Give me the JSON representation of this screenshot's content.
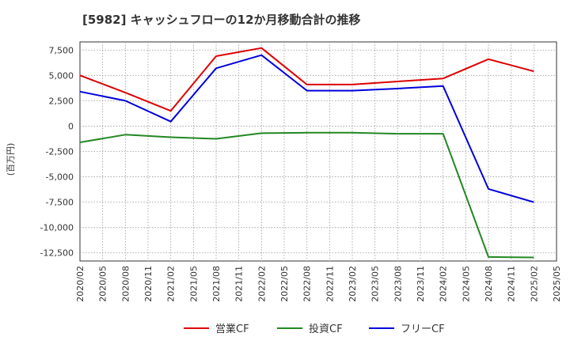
{
  "chart_data": {
    "type": "line",
    "title": "[5982]  キャッシュフローの12か月移動合計の推移",
    "ylabel": "(百万円)",
    "xlabel": "",
    "ylim": [
      -13300,
      8300
    ],
    "yticks": [
      7500,
      5000,
      2500,
      0,
      -2500,
      -5000,
      -7500,
      -10000,
      -12500
    ],
    "ytick_labels": [
      "7,500",
      "5,000",
      "2,500",
      "0",
      "-2,500",
      "-5,000",
      "-7,500",
      "-10,000",
      "-12,500"
    ],
    "x_ticks": [
      "2020/02",
      "2020/05",
      "2020/08",
      "2020/11",
      "2021/02",
      "2021/05",
      "2021/08",
      "2021/11",
      "2022/02",
      "2022/05",
      "2022/08",
      "2022/11",
      "2023/02",
      "2023/05",
      "2023/08",
      "2023/11",
      "2024/02",
      "2024/05",
      "2024/08",
      "2024/11",
      "2025/02",
      "2025/05"
    ],
    "grid": true,
    "legend_position": "bottom",
    "series": [
      {
        "name": "営業CF",
        "color": "#dd0000",
        "x": [
          "2020/02",
          "2020/08",
          "2021/02",
          "2021/08",
          "2022/02",
          "2022/08",
          "2023/02",
          "2023/08",
          "2024/02",
          "2024/08",
          "2025/02"
        ],
        "values": [
          5000,
          3300,
          1500,
          6900,
          7700,
          4100,
          4100,
          4400,
          4700,
          6600,
          5400
        ]
      },
      {
        "name": "投資CF",
        "color": "#228822",
        "x": [
          "2020/02",
          "2020/08",
          "2021/02",
          "2021/08",
          "2022/02",
          "2022/08",
          "2023/02",
          "2023/08",
          "2024/02",
          "2024/08",
          "2025/02"
        ],
        "values": [
          -1600,
          -850,
          -1100,
          -1250,
          -700,
          -650,
          -650,
          -750,
          -750,
          -12900,
          -12950
        ]
      },
      {
        "name": "フリーCF",
        "color": "#0000dd",
        "x": [
          "2020/02",
          "2020/08",
          "2021/02",
          "2021/08",
          "2022/02",
          "2022/08",
          "2023/02",
          "2023/08",
          "2024/02",
          "2024/08",
          "2025/02"
        ],
        "values": [
          3400,
          2500,
          450,
          5700,
          7000,
          3500,
          3500,
          3700,
          3950,
          -6200,
          -7500
        ]
      }
    ]
  }
}
